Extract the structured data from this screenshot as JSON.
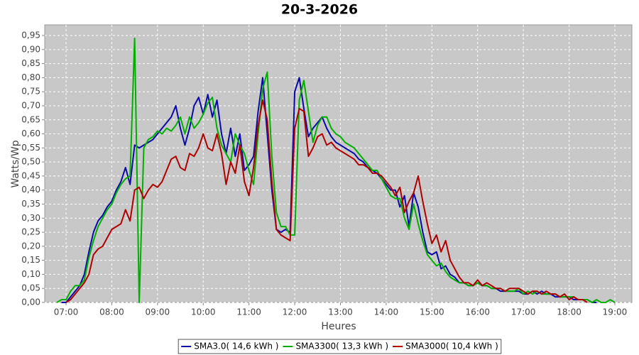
{
  "chart_data": {
    "type": "line",
    "title": "20-3-2026",
    "x_label": "Heures",
    "y_label": "Watts/Wp",
    "x": [
      6.8,
      6.9,
      7.0,
      7.1,
      7.2,
      7.3,
      7.4,
      7.5,
      7.6,
      7.7,
      7.8,
      7.9,
      8.0,
      8.1,
      8.2,
      8.3,
      8.4,
      8.5,
      8.6,
      8.7,
      8.8,
      8.9,
      9.0,
      9.1,
      9.2,
      9.3,
      9.4,
      9.5,
      9.6,
      9.7,
      9.8,
      9.9,
      10.0,
      10.1,
      10.2,
      10.3,
      10.4,
      10.5,
      10.6,
      10.7,
      10.8,
      10.9,
      11.0,
      11.1,
      11.2,
      11.3,
      11.4,
      11.5,
      11.6,
      11.7,
      11.8,
      11.9,
      12.0,
      12.1,
      12.2,
      12.3,
      12.4,
      12.5,
      12.6,
      12.7,
      12.8,
      12.9,
      13.0,
      13.1,
      13.2,
      13.3,
      13.4,
      13.5,
      13.6,
      13.7,
      13.8,
      13.9,
      14.0,
      14.1,
      14.2,
      14.3,
      14.4,
      14.5,
      14.6,
      14.7,
      14.8,
      14.9,
      15.0,
      15.1,
      15.2,
      15.3,
      15.4,
      15.5,
      15.6,
      15.7,
      15.8,
      15.9,
      16.0,
      16.1,
      16.2,
      16.3,
      16.4,
      16.5,
      16.6,
      16.7,
      16.8,
      16.9,
      17.0,
      17.1,
      17.2,
      17.3,
      17.4,
      17.5,
      17.6,
      17.7,
      17.8,
      17.9,
      18.0,
      18.1,
      18.2,
      18.3,
      18.4,
      18.5,
      18.6,
      18.7,
      18.8,
      18.9,
      19.0
    ],
    "series": [
      {
        "name": "SMA3.0( 14,6 kWh )",
        "color": "#0a0aa8",
        "values": [
          null,
          0.0,
          0.0,
          0.02,
          0.04,
          0.06,
          0.1,
          0.18,
          0.25,
          0.29,
          0.31,
          0.34,
          0.36,
          0.4,
          0.43,
          0.48,
          0.42,
          0.56,
          0.55,
          0.56,
          0.57,
          0.58,
          0.6,
          0.62,
          0.64,
          0.66,
          0.7,
          0.62,
          0.56,
          0.62,
          0.7,
          0.73,
          0.67,
          0.74,
          0.66,
          0.72,
          0.6,
          0.53,
          0.62,
          0.52,
          0.6,
          0.47,
          0.49,
          0.52,
          0.68,
          0.8,
          0.6,
          0.4,
          0.26,
          0.25,
          0.26,
          0.25,
          0.75,
          0.8,
          0.69,
          0.59,
          0.62,
          0.64,
          0.66,
          0.62,
          0.59,
          0.57,
          0.56,
          0.55,
          0.54,
          0.53,
          0.51,
          0.5,
          0.48,
          0.47,
          0.46,
          0.44,
          0.42,
          0.4,
          0.4,
          0.34,
          0.38,
          0.27,
          0.39,
          0.34,
          0.25,
          0.18,
          0.17,
          0.18,
          0.12,
          0.13,
          0.1,
          0.09,
          0.07,
          0.07,
          0.06,
          0.06,
          0.07,
          0.06,
          0.06,
          0.05,
          0.05,
          0.04,
          0.04,
          0.04,
          0.04,
          0.04,
          0.03,
          0.03,
          0.04,
          0.03,
          0.04,
          0.03,
          0.03,
          0.02,
          0.02,
          0.02,
          0.02,
          0.01,
          0.01,
          0.01,
          0.01,
          0.0,
          0.0,
          null,
          null,
          null,
          null
        ]
      },
      {
        "name": "SMA3300( 13,3 kWh )",
        "color": "#00b000",
        "values": [
          0.0,
          0.01,
          0.01,
          0.04,
          0.06,
          0.06,
          0.08,
          0.16,
          0.22,
          0.27,
          0.3,
          0.33,
          0.35,
          0.39,
          0.42,
          0.44,
          0.45,
          0.94,
          0.0,
          0.55,
          0.58,
          0.59,
          0.61,
          0.6,
          0.62,
          0.61,
          0.63,
          0.66,
          0.6,
          0.66,
          0.62,
          0.64,
          0.67,
          0.71,
          0.73,
          0.62,
          0.56,
          0.53,
          0.5,
          0.6,
          0.56,
          0.53,
          0.47,
          0.42,
          0.6,
          0.76,
          0.82,
          0.52,
          0.32,
          0.27,
          0.27,
          0.24,
          0.24,
          0.72,
          0.79,
          0.68,
          0.57,
          0.63,
          0.66,
          0.66,
          0.62,
          0.6,
          0.59,
          0.57,
          0.56,
          0.55,
          0.53,
          0.51,
          0.49,
          0.47,
          0.47,
          0.44,
          0.41,
          0.38,
          0.37,
          0.37,
          0.3,
          0.26,
          0.35,
          0.28,
          0.22,
          0.17,
          0.15,
          0.13,
          0.14,
          0.11,
          0.09,
          0.08,
          0.07,
          0.07,
          0.06,
          0.06,
          0.07,
          0.06,
          0.06,
          0.05,
          0.05,
          0.05,
          0.04,
          0.04,
          0.04,
          0.05,
          0.03,
          0.04,
          0.03,
          0.04,
          0.03,
          0.03,
          0.03,
          0.03,
          0.02,
          0.02,
          0.02,
          0.02,
          0.01,
          0.01,
          0.01,
          0.0,
          0.01,
          0.0,
          0.0,
          0.01,
          0.0
        ]
      },
      {
        "name": "SMA3000( 10,4 kWh )",
        "color": "#b00000",
        "values": [
          null,
          null,
          0.0,
          0.01,
          0.03,
          0.05,
          0.07,
          0.1,
          0.17,
          0.19,
          0.2,
          0.23,
          0.26,
          0.27,
          0.28,
          0.33,
          0.29,
          0.4,
          0.41,
          0.37,
          0.4,
          0.42,
          0.41,
          0.43,
          0.47,
          0.51,
          0.52,
          0.48,
          0.47,
          0.53,
          0.52,
          0.55,
          0.6,
          0.55,
          0.54,
          0.6,
          0.53,
          0.42,
          0.5,
          0.46,
          0.56,
          0.43,
          0.38,
          0.48,
          0.63,
          0.72,
          0.65,
          0.43,
          0.26,
          0.24,
          0.23,
          0.22,
          0.62,
          0.69,
          0.68,
          0.52,
          0.55,
          0.59,
          0.6,
          0.56,
          0.57,
          0.55,
          0.54,
          0.53,
          0.52,
          0.51,
          0.49,
          0.49,
          0.48,
          0.46,
          0.46,
          0.45,
          0.43,
          0.41,
          0.38,
          0.41,
          0.32,
          0.36,
          0.39,
          0.45,
          0.36,
          0.28,
          0.21,
          0.24,
          0.18,
          0.22,
          0.15,
          0.12,
          0.09,
          0.07,
          0.07,
          0.06,
          0.08,
          0.06,
          0.07,
          0.06,
          0.05,
          0.05,
          0.04,
          0.05,
          0.05,
          0.05,
          0.04,
          0.03,
          0.04,
          0.04,
          0.03,
          0.04,
          0.03,
          0.03,
          0.02,
          0.03,
          0.01,
          0.02,
          0.01,
          0.01,
          0.0,
          null,
          null,
          null,
          null,
          null,
          null
        ]
      }
    ],
    "xlim": [
      6.534,
      19.373
    ],
    "xticks": [
      {
        "value": 7,
        "label": "07:00"
      },
      {
        "value": 8,
        "label": "08:00"
      },
      {
        "value": 9,
        "label": "09:00"
      },
      {
        "value": 10,
        "label": "10:00"
      },
      {
        "value": 11,
        "label": "11:00"
      },
      {
        "value": 12,
        "label": "12:00"
      },
      {
        "value": 13,
        "label": "13:00"
      },
      {
        "value": 14,
        "label": "14:00"
      },
      {
        "value": 15,
        "label": "15:00"
      },
      {
        "value": 16,
        "label": "16:00"
      },
      {
        "value": 17,
        "label": "17:00"
      },
      {
        "value": 18,
        "label": "18:00"
      },
      {
        "value": 19,
        "label": "19:00"
      }
    ],
    "ylim": [
      0,
      0.988
    ],
    "yticks": [
      {
        "value": 0,
        "label": "0,00"
      },
      {
        "value": 0.05,
        "label": "0,05"
      },
      {
        "value": 0.1,
        "label": "0,10"
      },
      {
        "value": 0.15,
        "label": "0,15"
      },
      {
        "value": 0.2,
        "label": "0,20"
      },
      {
        "value": 0.25,
        "label": "0,25"
      },
      {
        "value": 0.3,
        "label": "0,30"
      },
      {
        "value": 0.35,
        "label": "0,35"
      },
      {
        "value": 0.4,
        "label": "0,40"
      },
      {
        "value": 0.45,
        "label": "0,45"
      },
      {
        "value": 0.5,
        "label": "0,50"
      },
      {
        "value": 0.55,
        "label": "0,55"
      },
      {
        "value": 0.6,
        "label": "0,60"
      },
      {
        "value": 0.65,
        "label": "0,65"
      },
      {
        "value": 0.7,
        "label": "0,70"
      },
      {
        "value": 0.75,
        "label": "0,75"
      },
      {
        "value": 0.8,
        "label": "0,80"
      },
      {
        "value": 0.85,
        "label": "0,85"
      },
      {
        "value": 0.9,
        "label": "0,90"
      },
      {
        "value": 0.95,
        "label": "0,95"
      }
    ],
    "grid": true,
    "legend": "bottom"
  }
}
